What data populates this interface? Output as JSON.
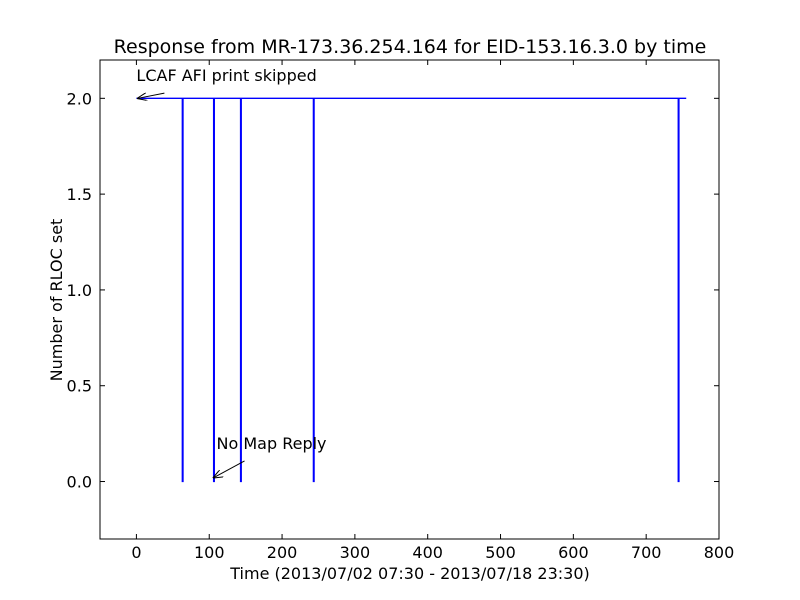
{
  "chart_data": {
    "type": "line",
    "title": "Response from MR-173.36.254.164 for EID-153.16.3.0 by time",
    "xlabel": "Time (2013/07/02 07:30 - 2013/07/18 23:30)",
    "ylabel": "Number of RLOC set",
    "xlim": [
      -50,
      800
    ],
    "ylim": [
      -0.3,
      2.2
    ],
    "xticks": [
      0,
      100,
      200,
      300,
      400,
      500,
      600,
      700,
      800
    ],
    "yticks": [
      0.0,
      0.5,
      1.0,
      1.5,
      2.0
    ],
    "xtick_labels": [
      "0",
      "100",
      "200",
      "300",
      "400",
      "500",
      "600",
      "700",
      "800"
    ],
    "ytick_labels": [
      "0.0",
      "0.5",
      "1.0",
      "1.5",
      "2.0"
    ],
    "grid": false,
    "series": [
      {
        "color": "#0000ff",
        "x": [
          0,
          63,
          63,
          64,
          64,
          65,
          65,
          106,
          106,
          107,
          107,
          143,
          143,
          144,
          144,
          243,
          243,
          244,
          244,
          744,
          744,
          745,
          745,
          755
        ],
        "y": [
          2,
          2,
          0,
          0,
          2,
          2,
          2,
          2,
          0,
          0,
          2,
          2,
          0,
          0,
          2,
          2,
          0,
          0,
          2,
          2,
          0,
          0,
          2,
          2
        ]
      }
    ],
    "annotations": [
      {
        "text": "LCAF AFI print skipped",
        "point": [
          2,
          2.0
        ],
        "text_pos": [
          0,
          2.09
        ]
      },
      {
        "text": "No Map Reply",
        "point": [
          106,
          0.02
        ],
        "text_pos": [
          110,
          0.17
        ]
      }
    ]
  }
}
